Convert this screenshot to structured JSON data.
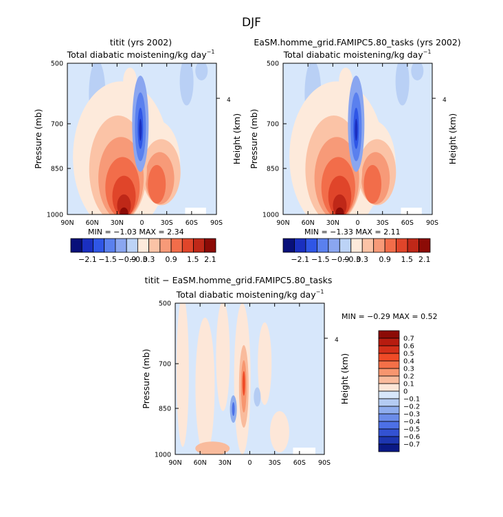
{
  "figure": {
    "title": "DJF"
  },
  "chart_data": [
    {
      "type": "heatmap",
      "title": "titit (yrs 2002)",
      "subtitle": "Total diabatic moistening/kg day",
      "subtitle_exp": "−1",
      "ylabel": "Pressure (mb)",
      "y2label": "Height (km)",
      "y2_ticks": [
        "4"
      ],
      "x_ticks": [
        "90N",
        "60N",
        "30N",
        "0",
        "30S",
        "60S",
        "90S"
      ],
      "y_ticks": [
        "500",
        "700",
        "850",
        "1000"
      ],
      "stats_text": "MIN =  −1.03    MAX =    2.34",
      "colorbar_ticks": [
        "−2.1",
        "−1.5",
        "−0.9",
        "−0.3",
        "0.3",
        "0.9",
        "1.5",
        "2.1"
      ]
    },
    {
      "type": "heatmap",
      "title": "EaSM.homme_grid.FAMIPC5.80_tasks (yrs 2002)",
      "subtitle": "Total diabatic moistening/kg day",
      "subtitle_exp": "−1",
      "ylabel": "Pressure (mb)",
      "y2label": "Height (km)",
      "y2_ticks": [
        "4"
      ],
      "x_ticks": [
        "90N",
        "60N",
        "30N",
        "0",
        "30S",
        "60S",
        "90S"
      ],
      "y_ticks": [
        "500",
        "700",
        "850",
        "1000"
      ],
      "stats_text": "MIN =  −1.33    MAX =    2.11",
      "colorbar_ticks": [
        "−2.1",
        "−1.5",
        "−0.9",
        "−0.3",
        "0.3",
        "0.9",
        "1.5",
        "2.1"
      ]
    },
    {
      "type": "heatmap",
      "title": "titit − EaSM.homme_grid.FAMIPC5.80_tasks",
      "subtitle": "Total diabatic moistening/kg day",
      "subtitle_exp": "−1",
      "ylabel": "Pressure (mb)",
      "y2label": "Height (km)",
      "y2_ticks": [
        "4"
      ],
      "x_ticks": [
        "90N",
        "60N",
        "30N",
        "0",
        "30S",
        "60S",
        "90S"
      ],
      "y_ticks": [
        "500",
        "700",
        "850",
        "1000"
      ],
      "stats_text": "MIN =  −0.29   MAX =    0.52",
      "colorbar_ticks": [
        "0.7",
        "0.6",
        "0.5",
        "0.4",
        "0.3",
        "0.2",
        "0.1",
        "0",
        "−0.1",
        "−0.2",
        "−0.3",
        "−0.4",
        "−0.5",
        "−0.6",
        "−0.7"
      ]
    }
  ],
  "colors": {
    "top_scale": [
      "#08107a",
      "#1a2fc0",
      "#2f56e6",
      "#5a80ee",
      "#8aa6f0",
      "#bcd3f6",
      "#fdeadb",
      "#fbc3a6",
      "#f79a78",
      "#f26d4a",
      "#e0452a",
      "#bf2818",
      "#8c0b06"
    ],
    "diff_scale": [
      "#8c0b06",
      "#b71c10",
      "#d4301a",
      "#ef4b27",
      "#f47048",
      "#f7966f",
      "#f9bb9c",
      "#fde7d8",
      "#d7e7fb",
      "#b4ccf3",
      "#8fadee",
      "#6b8ce9",
      "#4d70e6",
      "#3352d2",
      "#1d36b0",
      "#0a1985"
    ]
  }
}
